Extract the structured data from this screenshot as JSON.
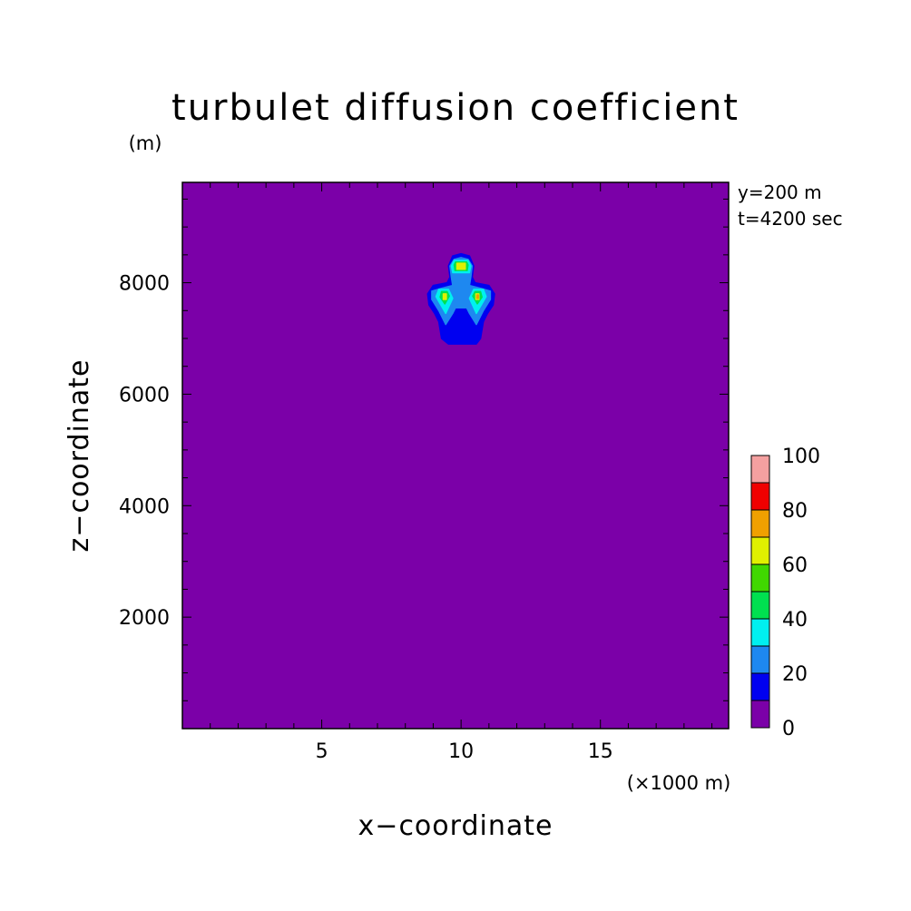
{
  "chart_data": {
    "type": "heatmap",
    "title": "turbulet diffusion coefficient",
    "xlabel": "x−coordinate",
    "ylabel": "z−coordinate",
    "x_unit": "(×1000 m)",
    "y_unit": "(m)",
    "xlim": [
      0,
      19.6
    ],
    "ylim": [
      0,
      9800
    ],
    "xticks": [
      5,
      10,
      15
    ],
    "xtick_labels": [
      "5",
      "10",
      "15"
    ],
    "yticks": [
      2000,
      4000,
      6000,
      8000
    ],
    "ytick_labels": [
      "2000",
      "4000",
      "6000",
      "8000"
    ],
    "annotations": [
      "y=200 m",
      "t=4200 sec"
    ],
    "background_level": 0,
    "colorbar": {
      "levels": [
        0,
        10,
        20,
        30,
        40,
        50,
        60,
        70,
        80,
        90,
        100
      ],
      "colors": [
        "#7b00a8",
        "#0000f0",
        "#1e88f0",
        "#00f0f0",
        "#00e050",
        "#40d800",
        "#e0f000",
        "#f0a000",
        "#f00000",
        "#f4a0a0"
      ],
      "tick_values": [
        0,
        20,
        40,
        60,
        80,
        100
      ],
      "tick_labels": [
        "0",
        "20",
        "40",
        "60",
        "80",
        "100"
      ]
    },
    "contours": [
      {
        "level": 10,
        "color": "#0000f0",
        "points": [
          [
            9.55,
            6.9
          ],
          [
            10.55,
            6.9
          ],
          [
            10.7,
            7.0
          ],
          [
            10.8,
            7.3
          ],
          [
            10.95,
            7.45
          ],
          [
            11.15,
            7.6
          ],
          [
            11.2,
            7.8
          ],
          [
            11.0,
            7.95
          ],
          [
            10.5,
            8.0
          ],
          [
            10.4,
            8.1
          ],
          [
            10.45,
            8.3
          ],
          [
            10.3,
            8.48
          ],
          [
            10.0,
            8.52
          ],
          [
            9.7,
            8.48
          ],
          [
            9.55,
            8.3
          ],
          [
            9.6,
            8.1
          ],
          [
            9.5,
            8.0
          ],
          [
            9.0,
            7.95
          ],
          [
            8.8,
            7.8
          ],
          [
            8.85,
            7.6
          ],
          [
            9.05,
            7.45
          ],
          [
            9.2,
            7.3
          ],
          [
            9.3,
            7.0
          ]
        ]
      },
      {
        "level": 20,
        "color": "#1e88f0",
        "points": [
          [
            9.45,
            7.25
          ],
          [
            9.7,
            7.45
          ],
          [
            9.8,
            7.55
          ],
          [
            10.2,
            7.55
          ],
          [
            10.3,
            7.45
          ],
          [
            10.55,
            7.25
          ],
          [
            10.8,
            7.5
          ],
          [
            11.05,
            7.7
          ],
          [
            11.05,
            7.85
          ],
          [
            10.7,
            7.9
          ],
          [
            10.3,
            7.95
          ],
          [
            10.35,
            8.1
          ],
          [
            10.4,
            8.3
          ],
          [
            10.25,
            8.42
          ],
          [
            10.0,
            8.45
          ],
          [
            9.75,
            8.42
          ],
          [
            9.6,
            8.3
          ],
          [
            9.65,
            8.1
          ],
          [
            9.7,
            7.95
          ],
          [
            9.3,
            7.9
          ],
          [
            8.95,
            7.85
          ],
          [
            8.95,
            7.7
          ],
          [
            9.2,
            7.5
          ]
        ]
      },
      {
        "level": 30,
        "color": "#00f0f0",
        "points": [
          [
            9.7,
            8.18
          ],
          [
            10.3,
            8.18
          ],
          [
            10.35,
            8.3
          ],
          [
            10.25,
            8.4
          ],
          [
            9.75,
            8.4
          ],
          [
            9.65,
            8.3
          ]
        ]
      },
      {
        "level": 30,
        "color": "#00f0f0",
        "points": [
          [
            9.45,
            7.45
          ],
          [
            9.7,
            7.72
          ],
          [
            9.55,
            7.88
          ],
          [
            9.2,
            7.88
          ],
          [
            9.1,
            7.75
          ]
        ]
      },
      {
        "level": 30,
        "color": "#00f0f0",
        "points": [
          [
            10.55,
            7.45
          ],
          [
            10.9,
            7.75
          ],
          [
            10.8,
            7.88
          ],
          [
            10.45,
            7.88
          ],
          [
            10.3,
            7.72
          ]
        ]
      },
      {
        "level": 50,
        "color": "#00e050",
        "points": [
          [
            9.78,
            8.22
          ],
          [
            10.22,
            8.22
          ],
          [
            10.25,
            8.32
          ],
          [
            10.2,
            8.37
          ],
          [
            9.8,
            8.37
          ],
          [
            9.75,
            8.32
          ]
        ]
      },
      {
        "level": 50,
        "color": "#00e050",
        "points": [
          [
            9.42,
            7.62
          ],
          [
            9.58,
            7.76
          ],
          [
            9.5,
            7.84
          ],
          [
            9.3,
            7.84
          ],
          [
            9.25,
            7.74
          ]
        ]
      },
      {
        "level": 50,
        "color": "#00e050",
        "points": [
          [
            10.58,
            7.62
          ],
          [
            10.75,
            7.74
          ],
          [
            10.7,
            7.84
          ],
          [
            10.5,
            7.84
          ],
          [
            10.42,
            7.76
          ]
        ]
      },
      {
        "level": 60,
        "color": "#e0f000",
        "points": [
          [
            9.85,
            8.24
          ],
          [
            10.15,
            8.24
          ],
          [
            10.15,
            8.35
          ],
          [
            9.85,
            8.35
          ]
        ]
      },
      {
        "level": 60,
        "color": "#e0f000",
        "points": [
          [
            9.36,
            7.7
          ],
          [
            9.47,
            7.7
          ],
          [
            9.47,
            7.8
          ],
          [
            9.36,
            7.8
          ]
        ]
      },
      {
        "level": 60,
        "color": "#e0f000",
        "points": [
          [
            10.53,
            7.7
          ],
          [
            10.64,
            7.7
          ],
          [
            10.64,
            7.8
          ],
          [
            10.53,
            7.8
          ]
        ]
      },
      {
        "level": 70,
        "color": "#f0a000",
        "points": [
          [
            10.57,
            7.72
          ],
          [
            10.62,
            7.72
          ],
          [
            10.62,
            7.78
          ],
          [
            10.57,
            7.78
          ]
        ]
      }
    ]
  }
}
